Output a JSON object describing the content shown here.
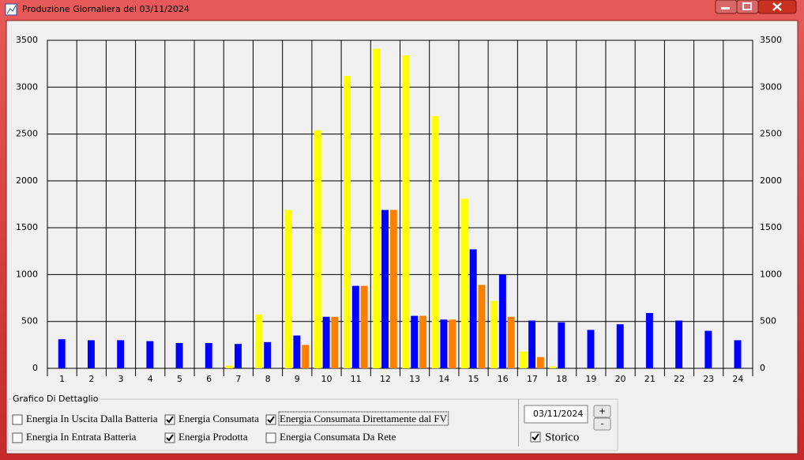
{
  "window": {
    "title": "Produzione Giornaliera del 03/11/2024"
  },
  "chart_data": {
    "type": "bar",
    "categories": [
      "1",
      "2",
      "3",
      "4",
      "5",
      "6",
      "7",
      "8",
      "9",
      "10",
      "11",
      "12",
      "13",
      "14",
      "15",
      "16",
      "17",
      "18",
      "19",
      "20",
      "21",
      "22",
      "23",
      "24"
    ],
    "series": [
      {
        "color": "#ffff00",
        "values": [
          0,
          0,
          0,
          0,
          0,
          0,
          30,
          575,
          1690,
          2540,
          3120,
          3410,
          3340,
          2690,
          1810,
          720,
          180,
          20,
          0,
          0,
          0,
          0,
          0,
          0
        ]
      },
      {
        "color": "#0000ff",
        "values": [
          310,
          300,
          300,
          290,
          270,
          270,
          260,
          280,
          350,
          550,
          880,
          1690,
          560,
          520,
          1270,
          1000,
          510,
          490,
          410,
          470,
          590,
          510,
          400,
          300
        ]
      },
      {
        "color": "#ff7f00",
        "values": [
          0,
          0,
          0,
          0,
          0,
          0,
          0,
          0,
          250,
          550,
          880,
          1690,
          560,
          520,
          890,
          550,
          120,
          0,
          0,
          0,
          0,
          0,
          0,
          0
        ]
      }
    ],
    "ylim": [
      0,
      3500
    ],
    "yticks": [
      0,
      500,
      1000,
      1500,
      2000,
      2500,
      3000,
      3500
    ],
    "grid": true
  },
  "panel": {
    "title": "Grafico Di Dettaglio",
    "checkboxes": [
      {
        "label": "Energia In Uscita Dalla Batteria",
        "checked": false,
        "color": "#9b1b1b"
      },
      {
        "label": "Energia Consumata",
        "checked": true,
        "color": "#0000a0"
      },
      {
        "label": "Energia Consumata Direttamente dal FV",
        "checked": true,
        "color": "#ff8000"
      },
      {
        "label": "Energia In Entrata Batteria",
        "checked": false,
        "color": "#20b020"
      },
      {
        "label": "Energia Prodotta",
        "checked": true,
        "color": "#c0c020"
      },
      {
        "label": "Energia Consumata Da Rete",
        "checked": false,
        "color": "#20b8b8"
      }
    ],
    "date": "03/11/2024",
    "buttons": [
      "+",
      "-"
    ],
    "storico": {
      "label": "Storico",
      "checked": true
    }
  }
}
